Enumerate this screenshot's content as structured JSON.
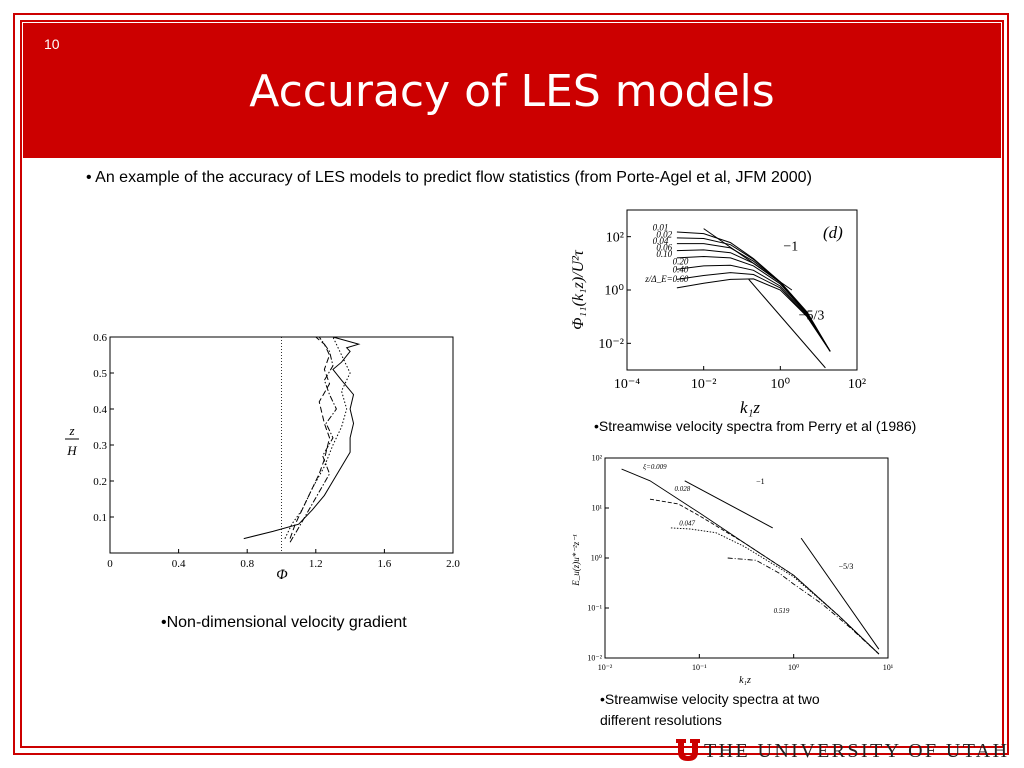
{
  "slide": {
    "number": "10",
    "title": "Accuracy of LES models"
  },
  "bullet_top": "• An example of the accuracy of LES models to predict flow statistics (from Porte-Agel et al, JFM 2000)",
  "captions": {
    "left": "•Non-dimensional velocity gradient",
    "right_top": "•Streamwise velocity spectra from Perry et al (1986)",
    "right_bottom_1": "•Streamwise velocity spectra at two",
    "right_bottom_2": "different resolutions"
  },
  "footer": {
    "university": "THE UNIVERSITY OF UTAH"
  },
  "colors": {
    "brand_red": "#cc0000"
  },
  "chart_data": [
    {
      "id": "phi_profile",
      "type": "line",
      "xlabel": "Φ",
      "ylabel_num": "z",
      "ylabel_den": "H",
      "xlim": [
        0,
        2.0
      ],
      "ylim": [
        0,
        0.6
      ],
      "xticks": [
        "0",
        "0.4",
        "0.8",
        "1.2",
        "1.6",
        "2.0"
      ],
      "yticks": [
        "0.1",
        "0.2",
        "0.3",
        "0.4",
        "0.5",
        "0.6"
      ],
      "reference_x": 1.0,
      "series": [
        {
          "style": "solid",
          "x": [
            0.78,
            0.95,
            1.1,
            1.18,
            1.25,
            1.3,
            1.35,
            1.4,
            1.4,
            1.42,
            1.4,
            1.42,
            1.35,
            1.3,
            1.35,
            1.4,
            1.38,
            1.45,
            1.3
          ],
          "y": [
            0.04,
            0.06,
            0.08,
            0.12,
            0.16,
            0.2,
            0.24,
            0.28,
            0.32,
            0.36,
            0.4,
            0.44,
            0.48,
            0.51,
            0.53,
            0.56,
            0.57,
            0.58,
            0.6
          ]
        },
        {
          "style": "dashed",
          "x": [
            1.05,
            1.08,
            1.12,
            1.18,
            1.22,
            1.25,
            1.28,
            1.25,
            1.22,
            1.28,
            1.25,
            1.28,
            1.25,
            1.2
          ],
          "y": [
            0.04,
            0.08,
            0.12,
            0.18,
            0.22,
            0.26,
            0.32,
            0.36,
            0.42,
            0.47,
            0.51,
            0.55,
            0.58,
            0.6
          ]
        },
        {
          "style": "dotted",
          "x": [
            1.02,
            1.06,
            1.12,
            1.18,
            1.25,
            1.3,
            1.35,
            1.38,
            1.35,
            1.4,
            1.35,
            1.3
          ],
          "y": [
            0.04,
            0.08,
            0.12,
            0.18,
            0.24,
            0.3,
            0.35,
            0.4,
            0.45,
            0.5,
            0.55,
            0.6
          ]
        },
        {
          "style": "dashdot",
          "x": [
            1.05,
            1.1,
            1.16,
            1.22,
            1.28,
            1.24,
            1.3,
            1.26,
            1.32,
            1.28,
            1.25,
            1.3,
            1.28,
            1.22
          ],
          "y": [
            0.03,
            0.07,
            0.12,
            0.17,
            0.22,
            0.27,
            0.32,
            0.36,
            0.4,
            0.44,
            0.48,
            0.52,
            0.56,
            0.6
          ]
        }
      ]
    },
    {
      "id": "perry_spectra",
      "type": "line",
      "panel_label": "(d)",
      "xlabel": "k₁z",
      "ylabel": "Φ₁₁(k₁z)/U²τ",
      "xscale": "log",
      "yscale": "log",
      "xlim": [
        0.0001,
        100
      ],
      "ylim": [
        0.001,
        1000
      ],
      "xticks": [
        "10⁻⁴",
        "10⁻²",
        "10⁰",
        "10²"
      ],
      "yticks": [
        "10²",
        "10⁰",
        "10⁻²"
      ],
      "slope_labels": [
        "−1",
        "−5/3"
      ],
      "curve_labels": [
        "0.01",
        "0.02",
        "0.04",
        "0.06",
        "0.10",
        "0.20",
        "0.40",
        "z/Δ_E=0.60"
      ],
      "series": [
        {
          "name": "0.01",
          "x": [
            0.002,
            0.01,
            0.05,
            0.2,
            1,
            5,
            20
          ],
          "y": [
            150,
            130,
            60,
            15,
            2,
            0.15,
            0.005
          ]
        },
        {
          "name": "0.02",
          "x": [
            0.002,
            0.01,
            0.05,
            0.2,
            1,
            5,
            20
          ],
          "y": [
            90,
            85,
            50,
            14,
            2,
            0.14,
            0.005
          ]
        },
        {
          "name": "0.04",
          "x": [
            0.002,
            0.01,
            0.05,
            0.2,
            1,
            5,
            20
          ],
          "y": [
            55,
            55,
            38,
            12,
            2,
            0.13,
            0.005
          ]
        },
        {
          "name": "0.06",
          "x": [
            0.002,
            0.01,
            0.05,
            0.2,
            1,
            5,
            20
          ],
          "y": [
            30,
            32,
            25,
            10,
            1.9,
            0.13,
            0.005
          ]
        },
        {
          "name": "0.10",
          "x": [
            0.002,
            0.01,
            0.05,
            0.2,
            1,
            5,
            20
          ],
          "y": [
            16,
            18,
            16,
            8,
            1.7,
            0.12,
            0.005
          ]
        },
        {
          "name": "0.20",
          "x": [
            0.002,
            0.01,
            0.05,
            0.2,
            1,
            5,
            20
          ],
          "y": [
            6,
            8,
            8.5,
            5.5,
            1.4,
            0.11,
            0.005
          ]
        },
        {
          "name": "0.40",
          "x": [
            0.002,
            0.01,
            0.05,
            0.2,
            1,
            5,
            20
          ],
          "y": [
            2.5,
            3.5,
            4.5,
            3.8,
            1.2,
            0.1,
            0.005
          ]
        },
        {
          "name": "0.60",
          "x": [
            0.002,
            0.01,
            0.05,
            0.2,
            1,
            5,
            20
          ],
          "y": [
            1.2,
            1.8,
            2.5,
            2.6,
            1.0,
            0.1,
            0.005
          ]
        }
      ]
    },
    {
      "id": "les_spectra",
      "type": "line",
      "xlabel": "k₁z",
      "ylabel": "E_u(z)u*⁻²z⁻¹",
      "xscale": "log",
      "yscale": "log",
      "xlim": [
        0.01,
        10
      ],
      "ylim": [
        0.01,
        100
      ],
      "xticks": [
        "10⁻²",
        "10⁻¹",
        "10⁰",
        "10¹"
      ],
      "yticks": [
        "10²",
        "10¹",
        "10⁰",
        "10⁻¹",
        "10⁻²"
      ],
      "slope_labels": [
        "−1",
        "−5/3"
      ],
      "curve_labels": [
        "ξ=0.009",
        "0.028",
        "0.047",
        "0.519"
      ],
      "series": [
        {
          "name": "ξ=0.009",
          "x": [
            0.015,
            0.03,
            0.1,
            0.3,
            1,
            3,
            8
          ],
          "y": [
            60,
            35,
            8,
            2,
            0.45,
            0.07,
            0.012
          ]
        },
        {
          "name": "0.028",
          "x": [
            0.03,
            0.06,
            0.1,
            0.3,
            1,
            3,
            8
          ],
          "y": [
            15,
            12,
            7,
            2,
            0.45,
            0.07,
            0.012
          ]
        },
        {
          "name": "0.047",
          "x": [
            0.05,
            0.08,
            0.15,
            0.3,
            1,
            3,
            8
          ],
          "y": [
            4,
            3.8,
            3.2,
            1.7,
            0.42,
            0.07,
            0.012
          ]
        },
        {
          "name": "0.519",
          "x": [
            0.2,
            0.4,
            0.7,
            1,
            2,
            4,
            8
          ],
          "y": [
            1.0,
            0.9,
            0.5,
            0.3,
            0.12,
            0.04,
            0.012
          ]
        }
      ]
    }
  ]
}
